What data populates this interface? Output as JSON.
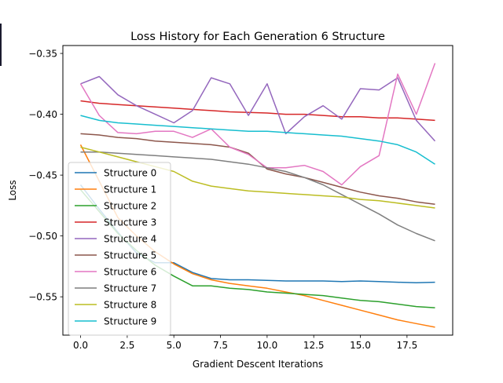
{
  "chart_data": {
    "type": "line",
    "title": "Loss History for Each Generation 6 Structure",
    "xlabel": "Gradient Descent Iterations",
    "ylabel": "Loss",
    "xlim": [
      -0.95,
      19.95
    ],
    "ylim": [
      -0.5815,
      -0.3435
    ],
    "xticks": [
      0.0,
      2.5,
      5.0,
      7.5,
      10.0,
      12.5,
      15.0,
      17.5
    ],
    "xtick_labels": [
      "0.0",
      "2.5",
      "5.0",
      "7.5",
      "10.0",
      "12.5",
      "15.0",
      "17.5"
    ],
    "yticks": [
      -0.35,
      -0.4,
      -0.45,
      -0.5,
      -0.55
    ],
    "ytick_labels": [
      "−0.35",
      "−0.40",
      "−0.45",
      "−0.50",
      "−0.55"
    ],
    "grid": false,
    "legend_position": "center-left",
    "x": [
      0,
      1,
      2,
      3,
      4,
      5,
      6,
      7,
      8,
      9,
      10,
      11,
      12,
      13,
      14,
      15,
      16,
      17,
      18,
      19
    ],
    "series": [
      {
        "name": "Structure 0",
        "color": "#1f77b4",
        "values": [
          -0.458,
          -0.478,
          -0.497,
          -0.514,
          -0.522,
          -0.522,
          -0.53,
          -0.535,
          -0.536,
          -0.536,
          -0.5365,
          -0.537,
          -0.537,
          -0.537,
          -0.5375,
          -0.537,
          -0.5375,
          -0.538,
          -0.5385,
          -0.538
        ]
      },
      {
        "name": "Structure 1",
        "color": "#ff7f0e",
        "values": [
          -0.425,
          -0.455,
          -0.485,
          -0.5,
          -0.513,
          -0.523,
          -0.531,
          -0.536,
          -0.539,
          -0.541,
          -0.543,
          -0.546,
          -0.549,
          -0.553,
          -0.557,
          -0.561,
          -0.565,
          -0.569,
          -0.572,
          -0.575
        ]
      },
      {
        "name": "Structure 2",
        "color": "#2ca02c",
        "values": [
          -0.462,
          -0.48,
          -0.498,
          -0.512,
          -0.524,
          -0.533,
          -0.541,
          -0.541,
          -0.543,
          -0.544,
          -0.546,
          -0.547,
          -0.548,
          -0.549,
          -0.551,
          -0.553,
          -0.554,
          -0.556,
          -0.558,
          -0.559
        ]
      },
      {
        "name": "Structure 3",
        "color": "#d62728",
        "values": [
          -0.389,
          -0.391,
          -0.392,
          -0.393,
          -0.394,
          -0.395,
          -0.396,
          -0.397,
          -0.398,
          -0.3985,
          -0.399,
          -0.4,
          -0.4,
          -0.401,
          -0.402,
          -0.402,
          -0.403,
          -0.403,
          -0.404,
          -0.405
        ]
      },
      {
        "name": "Structure 4",
        "color": "#9467bd",
        "values": [
          -0.375,
          -0.369,
          -0.384,
          -0.393,
          -0.4,
          -0.407,
          -0.397,
          -0.37,
          -0.375,
          -0.401,
          -0.375,
          -0.416,
          -0.402,
          -0.393,
          -0.404,
          -0.379,
          -0.38,
          -0.37,
          -0.405,
          -0.422
        ]
      },
      {
        "name": "Structure 5",
        "color": "#8c564b",
        "values": [
          -0.416,
          -0.417,
          -0.419,
          -0.42,
          -0.422,
          -0.423,
          -0.424,
          -0.425,
          -0.427,
          -0.432,
          -0.445,
          -0.449,
          -0.452,
          -0.456,
          -0.46,
          -0.464,
          -0.467,
          -0.469,
          -0.472,
          -0.474
        ]
      },
      {
        "name": "Structure 6",
        "color": "#e377c2",
        "values": [
          -0.375,
          -0.401,
          -0.415,
          -0.416,
          -0.414,
          -0.414,
          -0.419,
          -0.412,
          -0.427,
          -0.433,
          -0.444,
          -0.444,
          -0.442,
          -0.447,
          -0.458,
          -0.443,
          -0.434,
          -0.367,
          -0.4,
          -0.358
        ]
      },
      {
        "name": "Structure 7",
        "color": "#7f7f7f",
        "values": [
          -0.431,
          -0.431,
          -0.432,
          -0.433,
          -0.434,
          -0.435,
          -0.436,
          -0.437,
          -0.439,
          -0.441,
          -0.444,
          -0.447,
          -0.452,
          -0.458,
          -0.466,
          -0.474,
          -0.482,
          -0.491,
          -0.498,
          -0.504
        ]
      },
      {
        "name": "Structure 8",
        "color": "#bcbd22",
        "values": [
          -0.427,
          -0.431,
          -0.435,
          -0.439,
          -0.443,
          -0.447,
          -0.455,
          -0.459,
          -0.461,
          -0.463,
          -0.464,
          -0.465,
          -0.466,
          -0.467,
          -0.468,
          -0.47,
          -0.471,
          -0.473,
          -0.475,
          -0.477
        ]
      },
      {
        "name": "Structure 9",
        "color": "#17becf",
        "values": [
          -0.401,
          -0.405,
          -0.407,
          -0.408,
          -0.409,
          -0.41,
          -0.411,
          -0.412,
          -0.413,
          -0.414,
          -0.414,
          -0.415,
          -0.416,
          -0.417,
          -0.418,
          -0.42,
          -0.422,
          -0.425,
          -0.431,
          -0.441
        ]
      }
    ]
  }
}
